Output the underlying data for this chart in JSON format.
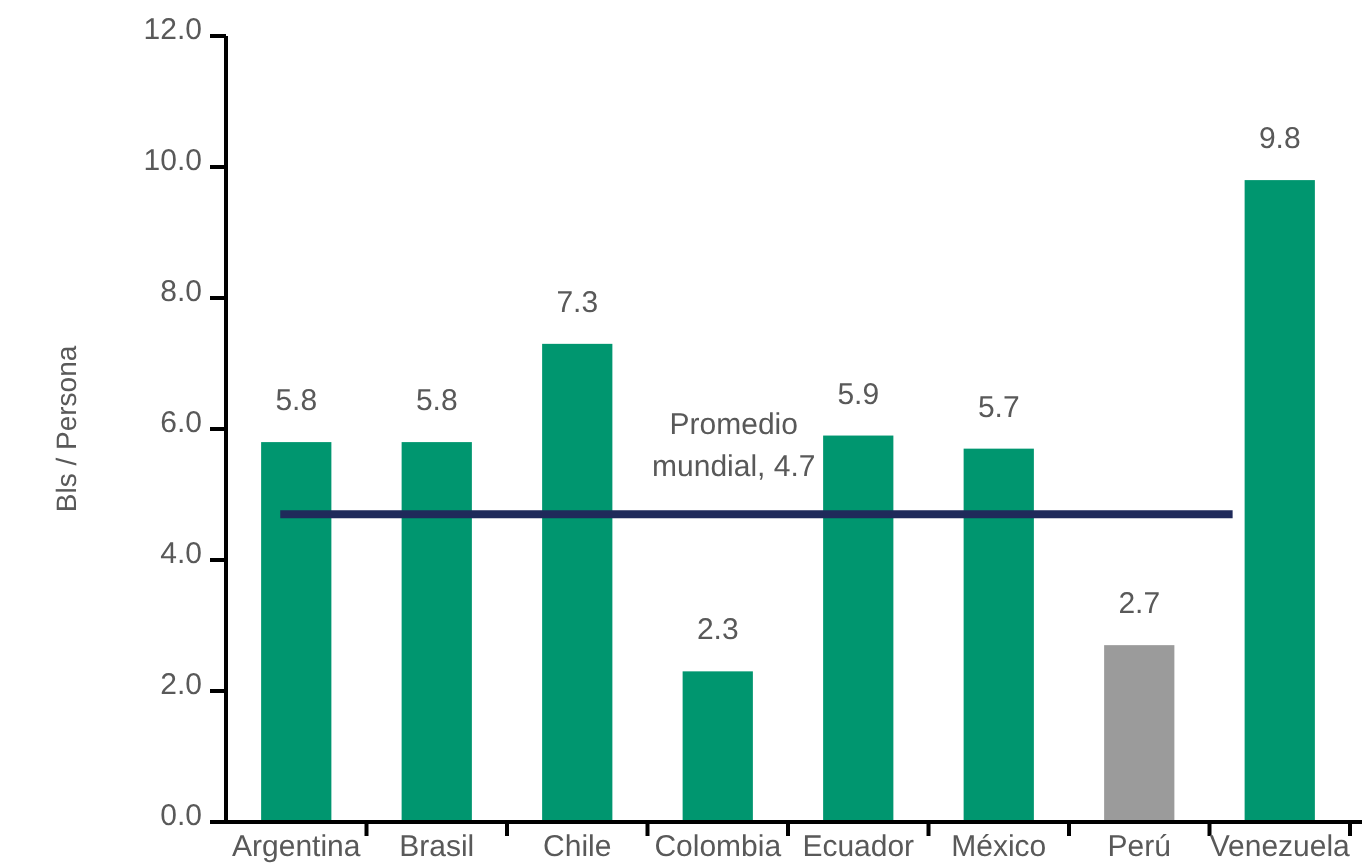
{
  "chart_data": {
    "type": "bar",
    "ylabel": "Bls / Persona",
    "categories": [
      "Argentina",
      "Brasil",
      "Chile",
      "Colombia",
      "Ecuador",
      "México",
      "Perú",
      "Venezuela"
    ],
    "values": [
      5.8,
      5.8,
      7.3,
      2.3,
      5.9,
      5.7,
      2.7,
      9.8
    ],
    "colors": [
      "#00966f",
      "#00966f",
      "#00966f",
      "#00966f",
      "#00966f",
      "#00966f",
      "#9b9b9b",
      "#00966f"
    ],
    "ylim": [
      0,
      12
    ],
    "yticks": [
      {
        "value": 0,
        "label": "0.0"
      },
      {
        "value": 2,
        "label": "2.0"
      },
      {
        "value": 4,
        "label": "4.0"
      },
      {
        "value": 6,
        "label": "6.0"
      },
      {
        "value": 8,
        "label": "8.0"
      },
      {
        "value": 10,
        "label": "10.0"
      },
      {
        "value": 12,
        "label": "12.0"
      }
    ],
    "data_labels": true,
    "ref_lines": [
      {
        "axis": "y",
        "value": 4.7,
        "label": "Promedio mundial, 4.7",
        "color": "#1f2a5a"
      }
    ]
  }
}
